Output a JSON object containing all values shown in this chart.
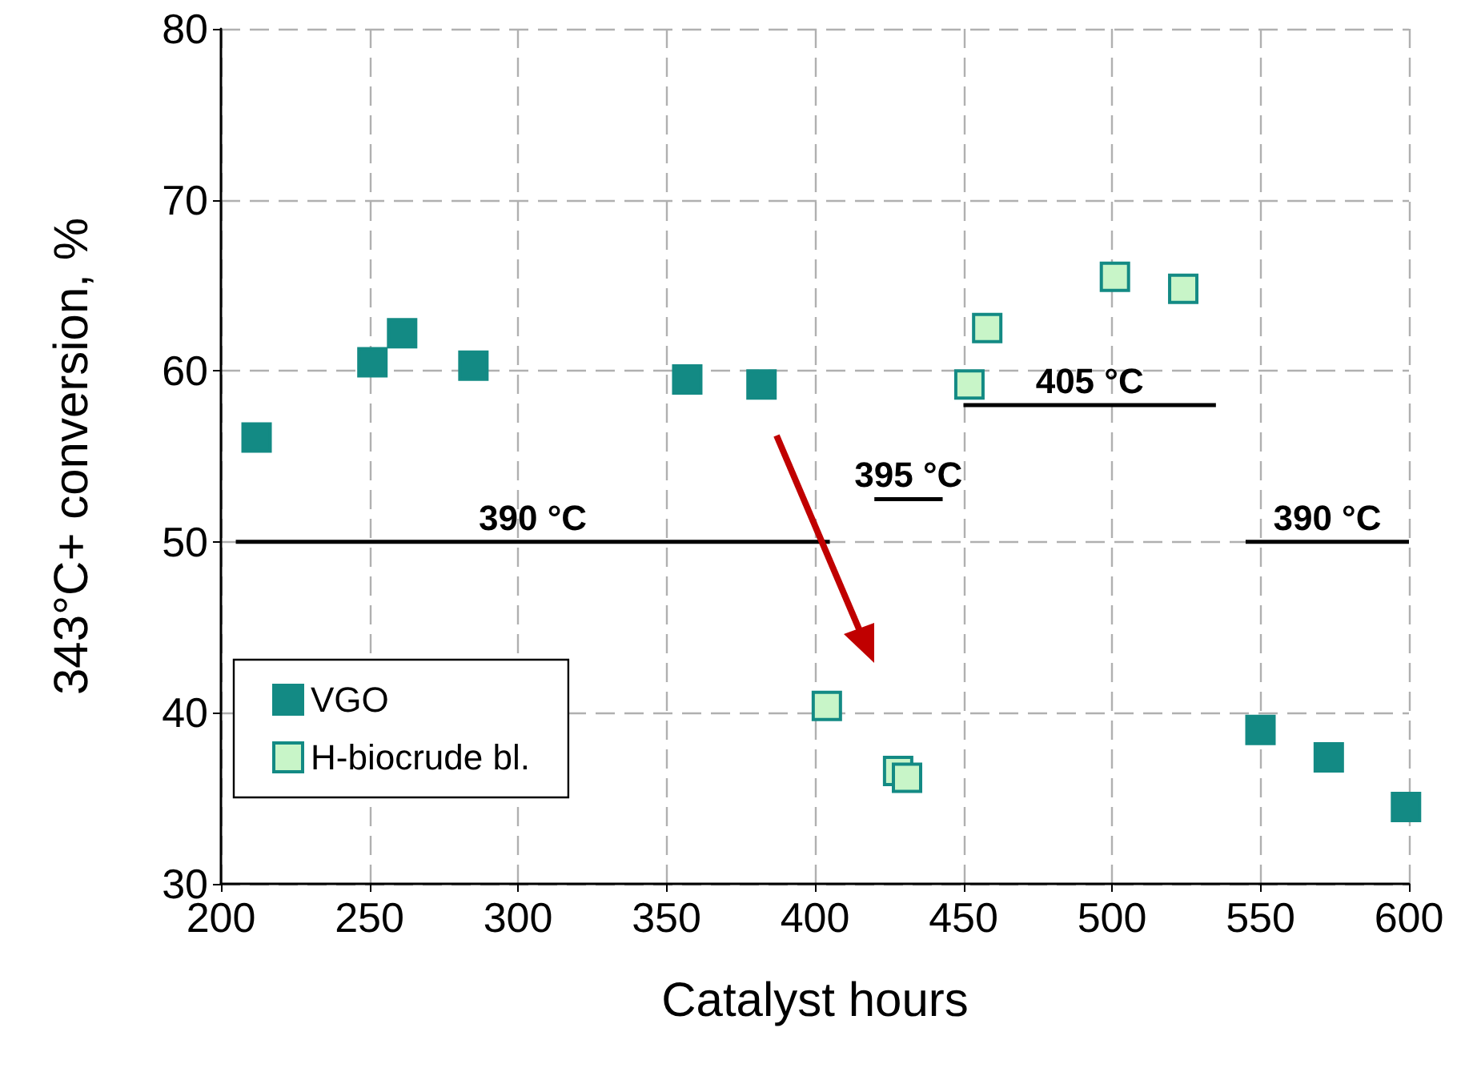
{
  "chart_data": {
    "type": "scatter",
    "xlabel": "Catalyst hours",
    "ylabel": "343°C+ conversion, %",
    "xlim": [
      200,
      600
    ],
    "xticks": [
      200,
      250,
      300,
      350,
      400,
      450,
      500,
      550,
      600
    ],
    "ylim": [
      30,
      80
    ],
    "yticks": [
      30,
      40,
      50,
      60,
      70,
      80
    ],
    "grid": true,
    "legend": "bottom left",
    "marker": "square",
    "series": [
      {
        "name": "VGO",
        "color": "#138a84",
        "x": [
          212,
          251,
          261,
          285,
          357,
          382,
          550,
          573,
          599
        ],
        "values": [
          56.1,
          60.5,
          62.2,
          60.3,
          59.5,
          59.2,
          39.0,
          37.4,
          34.5
        ]
      },
      {
        "name": "H-biocrude bl.",
        "color": "#c8f5c8",
        "x": [
          404,
          428,
          431,
          452,
          458,
          501,
          524
        ],
        "values": [
          40.4,
          36.6,
          36.2,
          59.2,
          62.5,
          65.5,
          64.8
        ]
      },
      {
        "type": "line",
        "name": "390 °C",
        "color": "#000000",
        "marker": "none",
        "x": [
          205,
          405
        ],
        "values": [
          50,
          50
        ]
      },
      {
        "type": "line",
        "name": "395 °C",
        "color": "#000000",
        "marker": "none",
        "x": [
          420,
          443
        ],
        "values": [
          52.5,
          52.5
        ]
      },
      {
        "type": "line",
        "name": "405 °C",
        "color": "#000000",
        "marker": "none",
        "x": [
          450,
          535
        ],
        "values": [
          58,
          58
        ]
      },
      {
        "type": "line",
        "name": "390 °C",
        "color": "#000000",
        "marker": "none",
        "x": [
          545,
          600
        ],
        "values": [
          50,
          50
        ]
      }
    ]
  }
}
